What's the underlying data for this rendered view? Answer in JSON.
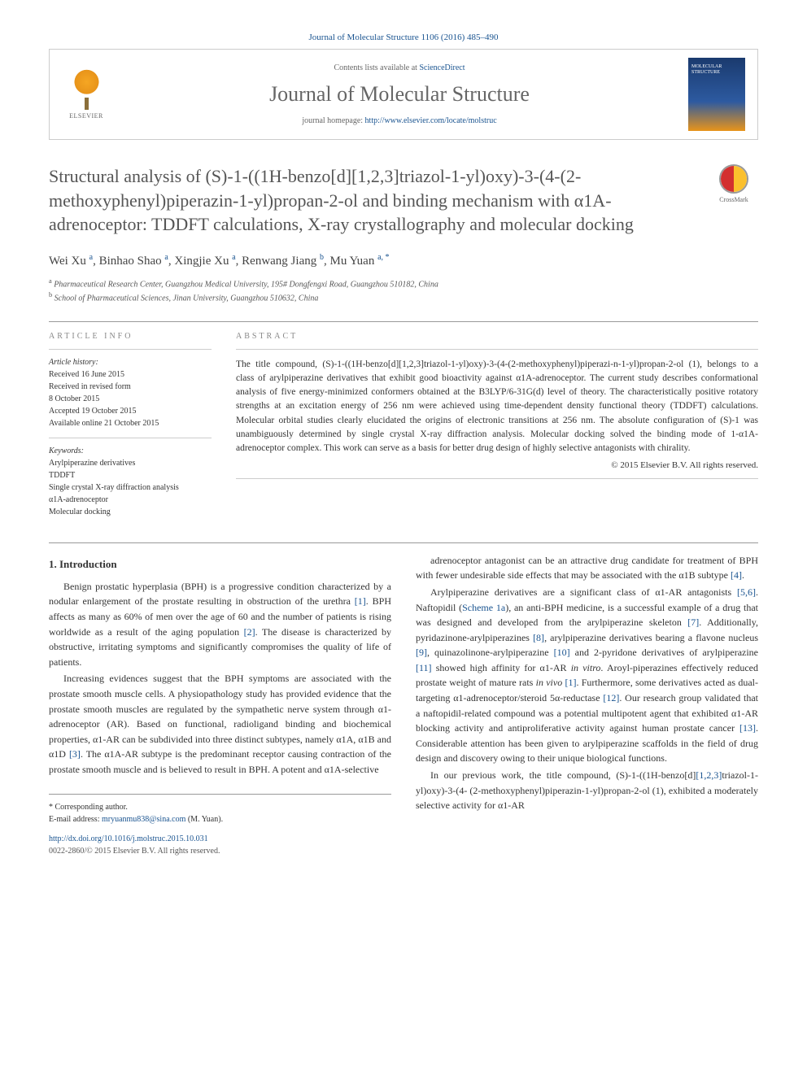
{
  "citation": "Journal of Molecular Structure 1106 (2016) 485–490",
  "header": {
    "contents_prefix": "Contents lists available at ",
    "contents_link": "ScienceDirect",
    "journal_name": "Journal of Molecular Structure",
    "homepage_prefix": "journal homepage: ",
    "homepage_url": "http://www.elsevier.com/locate/molstruc",
    "publisher": "ELSEVIER"
  },
  "crossmark_label": "CrossMark",
  "title": "Structural analysis of (S)-1-((1H-benzo[d][1,2,3]triazol-1-yl)oxy)-3-(4-(2-methoxyphenyl)piperazin-1-yl)propan-2-ol and binding mechanism with α1A-adrenoceptor: TDDFT calculations, X-ray crystallography and molecular docking",
  "authors_html": "Wei Xu <sup>a</sup>, Binhao Shao <sup>a</sup>, Xingjie Xu <sup>a</sup>, Renwang Jiang <sup>b</sup>, Mu Yuan <sup>a, <span class='corr'>*</span></sup>",
  "affiliations": [
    {
      "sup": "a",
      "text": "Pharmaceutical Research Center, Guangzhou Medical University, 195# Dongfengxi Road, Guangzhou 510182, China"
    },
    {
      "sup": "b",
      "text": "School of Pharmaceutical Sciences, Jinan University, Guangzhou 510632, China"
    }
  ],
  "info": {
    "heading": "ARTICLE INFO",
    "history_label": "Article history:",
    "history": [
      "Received 16 June 2015",
      "Received in revised form",
      "8 October 2015",
      "Accepted 19 October 2015",
      "Available online 21 October 2015"
    ],
    "keywords_label": "Keywords:",
    "keywords": [
      "Arylpiperazine derivatives",
      "TDDFT",
      "Single crystal X-ray diffraction analysis",
      "α1A-adrenoceptor",
      "Molecular docking"
    ]
  },
  "abstract": {
    "heading": "ABSTRACT",
    "text": "The title compound, (S)-1-((1H-benzo[d][1,2,3]triazol-1-yl)oxy)-3-(4-(2-methoxyphenyl)piperazi-n-1-yl)propan-2-ol (1), belongs to a class of arylpiperazine derivatives that exhibit good bioactivity against α1A-adrenoceptor. The current study describes conformational analysis of five energy-minimized conformers obtained at the B3LYP/6-31G(d) level of theory. The characteristically positive rotatory strengths at an excitation energy of 256 nm were achieved using time-dependent density functional theory (TDDFT) calculations. Molecular orbital studies clearly elucidated the origins of electronic transitions at 256 nm. The absolute configuration of (S)-1 was unambiguously determined by single crystal X-ray diffraction analysis. Molecular docking solved the binding mode of 1-α1A-adrenoceptor complex. This work can serve as a basis for better drug design of highly selective antagonists with chirality.",
    "copyright": "© 2015 Elsevier B.V. All rights reserved."
  },
  "section1": {
    "heading": "1. Introduction",
    "p1": "Benign prostatic hyperplasia (BPH) is a progressive condition characterized by a nodular enlargement of the prostate resulting in obstruction of the urethra [1]. BPH affects as many as 60% of men over the age of 60 and the number of patients is rising worldwide as a result of the aging population [2]. The disease is characterized by obstructive, irritating symptoms and significantly compromises the quality of life of patients.",
    "p2": "Increasing evidences suggest that the BPH symptoms are associated with the prostate smooth muscle cells. A physiopathology study has provided evidence that the prostate smooth muscles are regulated by the sympathetic nerve system through α1-adrenoceptor (AR). Based on functional, radioligand binding and biochemical properties, α1-AR can be subdivided into three distinct subtypes, namely α1A, α1B and α1D [3]. The α1A-AR subtype is the predominant receptor causing contraction of the prostate smooth muscle and is believed to result in BPH. A potent and α1A-selective",
    "p3": "adrenoceptor antagonist can be an attractive drug candidate for treatment of BPH with fewer undesirable side effects that may be associated with the α1B subtype [4].",
    "p4": "Arylpiperazine derivatives are a significant class of α1-AR antagonists [5,6]. Naftopidil (Scheme 1a), an anti-BPH medicine, is a successful example of a drug that was designed and developed from the arylpiperazine skeleton [7]. Additionally, pyridazinone-arylpiperazines [8], arylpiperazine derivatives bearing a flavone nucleus [9], quinazolinone-arylpiperazine [10] and 2-pyridone derivatives of arylpiperazine [11] showed high affinity for α1-AR in vitro. Aroyl-piperazines effectively reduced prostate weight of mature rats in vivo [1]. Furthermore, some derivatives acted as dual-targeting α1-adrenoceptor/steroid 5α-reductase [12]. Our research group validated that a naftopidil-related compound was a potential multipotent agent that exhibited α1-AR blocking activity and antiproliferative activity against human prostate cancer [13]. Considerable attention has been given to arylpiperazine scaffolds in the field of drug design and discovery owing to their unique biological functions.",
    "p5": "In our previous work, the title compound, (S)-1-((1H-benzo[d][1,2,3]triazol-1-yl)oxy)-3-(4- (2-methoxyphenyl)piperazin-1-yl)propan-2-ol (1), exhibited a moderately selective activity for α1-AR"
  },
  "footer": {
    "corr_label": "* Corresponding author.",
    "email_label": "E-mail address: ",
    "email": "mryuanmu838@sina.com",
    "email_suffix": " (M. Yuan).",
    "doi": "http://dx.doi.org/10.1016/j.molstruc.2015.10.031",
    "issn": "0022-2860/© 2015 Elsevier B.V. All rights reserved."
  },
  "colors": {
    "link": "#1a5490",
    "text": "#333333",
    "heading_gray": "#555555",
    "border": "#cccccc"
  }
}
